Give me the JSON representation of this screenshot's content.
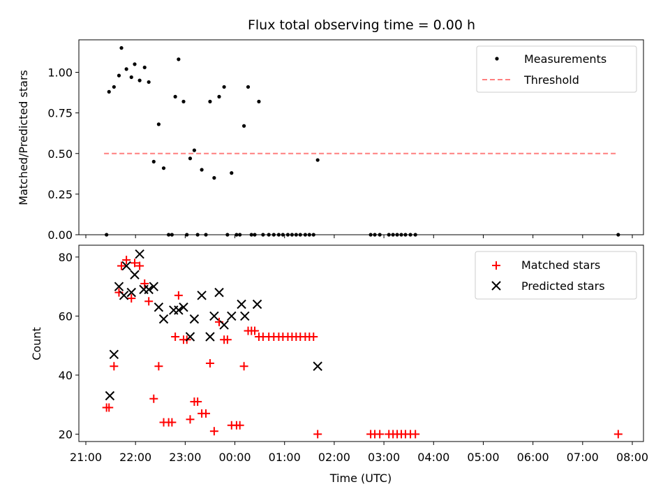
{
  "chart_data": [
    {
      "type": "scatter",
      "title": "Flux total observing time = 0.00 h",
      "xlabel": "",
      "ylabel": "Matched/Predicted stars",
      "xlim": [
        "21:00",
        "08:15"
      ],
      "ylim": [
        0,
        1.2
      ],
      "yticks": [
        0.0,
        0.25,
        0.5,
        0.75,
        1.0
      ],
      "ytick_labels": [
        "0.00",
        "0.25",
        "0.50",
        "0.75",
        "1.00"
      ],
      "xticks": [
        "21:00",
        "22:00",
        "23:00",
        "00:00",
        "01:00",
        "02:00",
        "03:00",
        "04:00",
        "05:00",
        "06:00",
        "07:00",
        "08:00"
      ],
      "legend_position": "top-right",
      "series": [
        {
          "name": "Measurements",
          "color": "#000000",
          "marker": "dot",
          "points": [
            [
              "21:25",
              0.0
            ],
            [
              "21:28",
              0.88
            ],
            [
              "21:34",
              0.91
            ],
            [
              "21:40",
              0.98
            ],
            [
              "21:43",
              1.15
            ],
            [
              "21:49",
              1.02
            ],
            [
              "21:55",
              0.97
            ],
            [
              "21:59",
              1.05
            ],
            [
              "22:05",
              0.95
            ],
            [
              "22:11",
              1.03
            ],
            [
              "22:16",
              0.94
            ],
            [
              "22:22",
              0.45
            ],
            [
              "22:28",
              0.68
            ],
            [
              "22:34",
              0.41
            ],
            [
              "22:40",
              0.0
            ],
            [
              "22:44",
              0.0
            ],
            [
              "22:48",
              0.85
            ],
            [
              "22:52",
              1.08
            ],
            [
              "22:58",
              0.82
            ],
            [
              "23:02",
              0.0
            ],
            [
              "23:06",
              0.47
            ],
            [
              "23:11",
              0.52
            ],
            [
              "23:15",
              0.0
            ],
            [
              "23:20",
              0.4
            ],
            [
              "23:25",
              0.0
            ],
            [
              "23:30",
              0.82
            ],
            [
              "23:35",
              0.35
            ],
            [
              "23:41",
              0.85
            ],
            [
              "23:47",
              0.91
            ],
            [
              "23:51",
              0.0
            ],
            [
              "23:56",
              0.38
            ],
            [
              "00:02",
              0.0
            ],
            [
              "00:06",
              0.0
            ],
            [
              "00:11",
              0.67
            ],
            [
              "00:16",
              0.91
            ],
            [
              "00:20",
              0.0
            ],
            [
              "00:24",
              0.0
            ],
            [
              "00:29",
              0.82
            ],
            [
              "00:34",
              0.0
            ],
            [
              "00:41",
              0.0
            ],
            [
              "00:47",
              0.0
            ],
            [
              "00:53",
              0.0
            ],
            [
              "00:58",
              0.0
            ],
            [
              "01:04",
              0.0
            ],
            [
              "01:09",
              0.0
            ],
            [
              "01:14",
              0.0
            ],
            [
              "01:19",
              0.0
            ],
            [
              "01:25",
              0.0
            ],
            [
              "01:30",
              0.0
            ],
            [
              "01:35",
              0.0
            ],
            [
              "01:40",
              0.46
            ],
            [
              "02:44",
              0.0
            ],
            [
              "02:49",
              0.0
            ],
            [
              "02:55",
              0.0
            ],
            [
              "03:06",
              0.0
            ],
            [
              "03:11",
              0.0
            ],
            [
              "03:16",
              0.0
            ],
            [
              "03:21",
              0.0
            ],
            [
              "03:26",
              0.0
            ],
            [
              "03:32",
              0.0
            ],
            [
              "03:38",
              0.0
            ],
            [
              "07:43",
              0.0
            ]
          ]
        },
        {
          "name": "Threshold",
          "color": "#ff7f7f",
          "style": "dashed",
          "x": [
            "21:22",
            "07:43"
          ],
          "y": [
            0.5,
            0.5
          ]
        }
      ]
    },
    {
      "type": "scatter",
      "title": "",
      "xlabel": "Time (UTC)",
      "ylabel": "Count",
      "xlim": [
        "21:00",
        "08:15"
      ],
      "ylim": [
        17.5,
        84
      ],
      "yticks": [
        20,
        40,
        60,
        80
      ],
      "ytick_labels": [
        "20",
        "40",
        "60",
        "80"
      ],
      "xticks": [
        "21:00",
        "22:00",
        "23:00",
        "00:00",
        "01:00",
        "02:00",
        "03:00",
        "04:00",
        "05:00",
        "06:00",
        "07:00",
        "08:00"
      ],
      "xtick_labels": [
        "21:00",
        "22:00",
        "23:00",
        "00:00",
        "01:00",
        "02:00",
        "03:00",
        "04:00",
        "05:00",
        "06:00",
        "07:00",
        "08:00"
      ],
      "legend_position": "top-right",
      "series": [
        {
          "name": "Matched stars",
          "color": "#ff0000",
          "marker": "plus",
          "points": [
            [
              "21:25",
              29
            ],
            [
              "21:28",
              29
            ],
            [
              "21:34",
              43
            ],
            [
              "21:40",
              68
            ],
            [
              "21:43",
              77
            ],
            [
              "21:49",
              79
            ],
            [
              "21:55",
              66
            ],
            [
              "21:59",
              78
            ],
            [
              "22:05",
              77
            ],
            [
              "22:11",
              71
            ],
            [
              "22:16",
              65
            ],
            [
              "22:22",
              32
            ],
            [
              "22:28",
              43
            ],
            [
              "22:34",
              24
            ],
            [
              "22:40",
              24
            ],
            [
              "22:44",
              24
            ],
            [
              "22:48",
              53
            ],
            [
              "22:52",
              67
            ],
            [
              "22:58",
              52
            ],
            [
              "23:02",
              52
            ],
            [
              "23:06",
              25
            ],
            [
              "23:11",
              31
            ],
            [
              "23:15",
              31
            ],
            [
              "23:20",
              27
            ],
            [
              "23:25",
              27
            ],
            [
              "23:30",
              44
            ],
            [
              "23:35",
              21
            ],
            [
              "23:41",
              58
            ],
            [
              "23:47",
              52
            ],
            [
              "23:51",
              52
            ],
            [
              "23:56",
              23
            ],
            [
              "00:02",
              23
            ],
            [
              "00:06",
              23
            ],
            [
              "00:11",
              43
            ],
            [
              "00:16",
              55
            ],
            [
              "00:20",
              55
            ],
            [
              "00:24",
              55
            ],
            [
              "00:29",
              53
            ],
            [
              "00:34",
              53
            ],
            [
              "00:41",
              53
            ],
            [
              "00:47",
              53
            ],
            [
              "00:53",
              53
            ],
            [
              "00:58",
              53
            ],
            [
              "01:04",
              53
            ],
            [
              "01:09",
              53
            ],
            [
              "01:14",
              53
            ],
            [
              "01:19",
              53
            ],
            [
              "01:25",
              53
            ],
            [
              "01:30",
              53
            ],
            [
              "01:35",
              53
            ],
            [
              "01:40",
              20
            ],
            [
              "02:44",
              20
            ],
            [
              "02:49",
              20
            ],
            [
              "02:55",
              20
            ],
            [
              "03:06",
              20
            ],
            [
              "03:11",
              20
            ],
            [
              "03:16",
              20
            ],
            [
              "03:21",
              20
            ],
            [
              "03:26",
              20
            ],
            [
              "03:32",
              20
            ],
            [
              "03:38",
              20
            ],
            [
              "07:43",
              20
            ]
          ]
        },
        {
          "name": "Predicted stars",
          "color": "#000000",
          "marker": "x",
          "points": [
            [
              "21:29",
              33
            ],
            [
              "21:34",
              47
            ],
            [
              "21:40",
              70
            ],
            [
              "21:46",
              67
            ],
            [
              "21:49",
              77
            ],
            [
              "21:55",
              68
            ],
            [
              "21:59",
              74
            ],
            [
              "22:05",
              81
            ],
            [
              "22:10",
              69
            ],
            [
              "22:16",
              69
            ],
            [
              "22:22",
              70
            ],
            [
              "22:28",
              63
            ],
            [
              "22:34",
              59
            ],
            [
              "22:46",
              62
            ],
            [
              "22:52",
              62
            ],
            [
              "22:58",
              63
            ],
            [
              "23:06",
              53
            ],
            [
              "23:11",
              59
            ],
            [
              "23:20",
              67
            ],
            [
              "23:30",
              53
            ],
            [
              "23:35",
              60
            ],
            [
              "23:41",
              68
            ],
            [
              "23:47",
              57
            ],
            [
              "23:56",
              60
            ],
            [
              "00:08",
              64
            ],
            [
              "00:12",
              60
            ],
            [
              "00:27",
              64
            ],
            [
              "01:40",
              43
            ]
          ]
        }
      ]
    }
  ]
}
